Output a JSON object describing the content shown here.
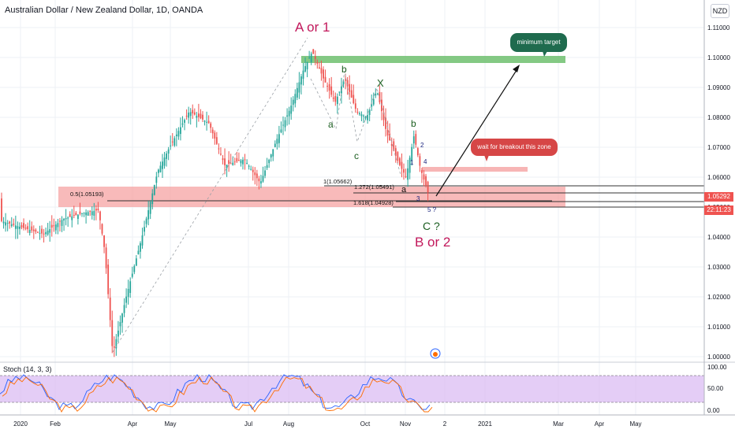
{
  "header": {
    "title": "Australian Dollar / New Zealand Dollar, 1D, OANDA",
    "currency_badge": "NZD"
  },
  "price_axis": {
    "labels": [
      "1.11000",
      "1.10000",
      "1.09000",
      "1.08000",
      "1.07000",
      "1.06000",
      "1.05000",
      "1.04000",
      "1.03000",
      "1.02000",
      "1.01000",
      "1.00000"
    ],
    "current_price": "1.05292",
    "countdown": "22:11:23"
  },
  "time_axis": {
    "labels": [
      "2020",
      "Feb",
      "Apr",
      "May",
      "Jul",
      "Aug",
      "Oct",
      "Nov",
      "2",
      "2021",
      "Mar",
      "Apr",
      "May"
    ]
  },
  "indicator": {
    "label": "Stoch (14, 3, 3)",
    "axis_labels": [
      "100.00",
      "50.00",
      "0.00"
    ]
  },
  "annotations": {
    "wave_a_or_1": "A or 1",
    "wave_b_or_2": "B or 2",
    "wave_c": "C ?",
    "sub_b1": "b",
    "sub_a1": "a",
    "sub_c1": "c",
    "sub_x": "X",
    "sub_b2": "b",
    "sub_a2": "a",
    "n1": "1",
    "n2": "2",
    "n3": "3",
    "n4": "4",
    "n5": "5 ?",
    "fib_05": "0.5(1.05193)",
    "fib_1": "1(1.05662)",
    "fib_1272": "1.272(1.05491)",
    "fib_1618": "1.618(1.04928)",
    "minimum_target": "minimum target",
    "wait_breakout": "wait for breakout this zone"
  },
  "colors": {
    "up_candle": "#26a69a",
    "down_candle": "#ef5350",
    "support_zone": "#f5a3a3",
    "target_zone": "#6fbf6f",
    "stoch_band": "#d9b8f2",
    "wave_label": "#c2185b",
    "sub_label": "#1b5e20"
  }
}
